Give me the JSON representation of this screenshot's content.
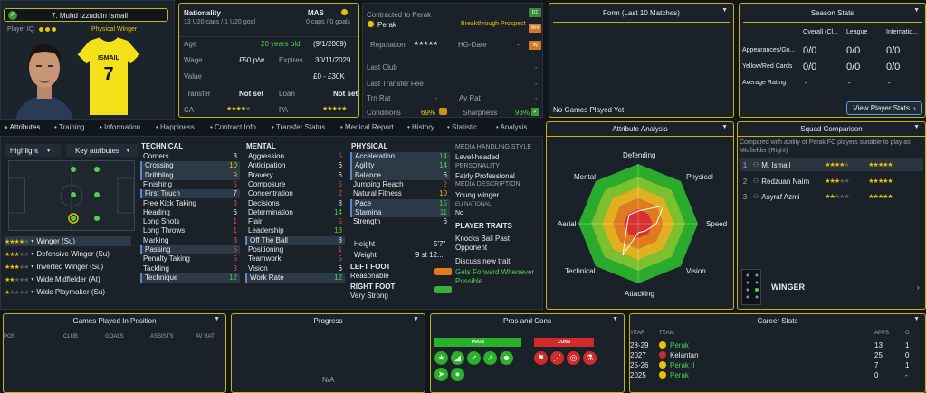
{
  "player": {
    "name": "7. Muhd Izzuddin Ismail",
    "iq_label": "Player IQ:",
    "role": "Physical Winger",
    "shirt_name": "ISMAIL",
    "shirt_number": "7",
    "badge": "A"
  },
  "bio": {
    "nationality_label": "Nationality",
    "nationality": "MAS",
    "caps": "13 U20 caps / 1 U20 goal",
    "intl_caps": "0 caps / 0 goals",
    "age_label": "Age",
    "age": "20 years old",
    "dob": "(9/1/2009)",
    "wage_label": "Wage",
    "wage": "£50 p/w",
    "expires_label": "Expires",
    "expires": "30/11/2029",
    "value_label": "Value",
    "value": "£0 - £30K",
    "transfer_label": "Transfer",
    "transfer": "Not set",
    "loan_label": "Loan",
    "loan": "Not set",
    "ca_label": "CA",
    "pa_label": "PA"
  },
  "contract": {
    "title": "Contracted to Perak",
    "club": "Perak",
    "prospect": "Breakthrough Prospect",
    "rep_label": "Reputation",
    "hg_label": "HG-Date",
    "hg_value": "-",
    "last_club_label": "Last Club",
    "last_club": "-",
    "last_fee_label": "Last Transfer Fee",
    "last_fee": "-",
    "trn_label": "Trn Rat",
    "trn": "-",
    "av_label": "Av Rat",
    "av": "-",
    "cond_label": "Conditions",
    "cond": "69%",
    "sharp_label": "Sharpness",
    "sharp": "93%",
    "tag1": "D1",
    "tag2": "Wnt",
    "tag3": "Inj"
  },
  "form": {
    "title": "Form (Last 10 Matches)",
    "empty": "No Games Played Yet"
  },
  "season": {
    "title": "Season Stats",
    "col1": "Overall (Cl...",
    "col2": "League",
    "col3": "Internatio...",
    "rows": [
      {
        "label": "Appearances/Go...",
        "a": "0/0",
        "b": "0/0",
        "c": "0/0"
      },
      {
        "label": "Yellow/Red Cards",
        "a": "0/0",
        "b": "0/0",
        "c": "0/0"
      },
      {
        "label": "Average Rating",
        "a": "-",
        "b": "-",
        "c": "-"
      }
    ],
    "button": "View Player Stats"
  },
  "tabs": [
    "Attributes",
    "Training",
    "Information",
    "Happiness",
    "Contract Info",
    "Transfer Status",
    "Medical Report",
    "History",
    "Statistic",
    "Analysis"
  ],
  "controls": {
    "highlight": "Highlight",
    "key_attrs": "Key attributes"
  },
  "technical": {
    "title": "TECHNICAL",
    "items": [
      [
        "Corners",
        "3",
        "w"
      ],
      [
        "Crossing",
        "10",
        "y"
      ],
      [
        "Dribbling",
        "9",
        "y"
      ],
      [
        "Finishing",
        "5",
        "r"
      ],
      [
        "First Touch",
        "7",
        "w"
      ],
      [
        "Free Kick Taking",
        "3",
        "r"
      ],
      [
        "Heading",
        "6",
        "w"
      ],
      [
        "Long Shots",
        "1",
        "r"
      ],
      [
        "Long Throws",
        "1",
        "r"
      ],
      [
        "Marking",
        "3",
        "r"
      ],
      [
        "Passing",
        "5",
        "r"
      ],
      [
        "Penalty Taking",
        "5",
        "r"
      ],
      [
        "Tackling",
        "3",
        "r"
      ],
      [
        "Technique",
        "12",
        "g"
      ]
    ]
  },
  "mental": {
    "title": "MENTAL",
    "items": [
      [
        "Aggression",
        "5",
        "r"
      ],
      [
        "Anticipation",
        "6",
        "w"
      ],
      [
        "Bravery",
        "6",
        "w"
      ],
      [
        "Composure",
        "5",
        "r"
      ],
      [
        "Concentration",
        "2",
        "r"
      ],
      [
        "Decisions",
        "8",
        "w"
      ],
      [
        "Determination",
        "14",
        "g"
      ],
      [
        "Flair",
        "5",
        "r"
      ],
      [
        "Leadership",
        "13",
        "g"
      ],
      [
        "Off The Ball",
        "8",
        "w"
      ],
      [
        "Positioning",
        "1",
        "r"
      ],
      [
        "Teamwork",
        "5",
        "r"
      ],
      [
        "Vision",
        "6",
        "w"
      ],
      [
        "Work Rate",
        "12",
        "g"
      ]
    ]
  },
  "physical": {
    "title": "PHYSICAL",
    "items": [
      [
        "Acceleration",
        "14",
        "g"
      ],
      [
        "Agility",
        "14",
        "g"
      ],
      [
        "Balance",
        "6",
        "w"
      ],
      [
        "Jumping Reach",
        "2",
        "r"
      ],
      [
        "Natural Fitness",
        "10",
        "y"
      ],
      [
        "Pace",
        "15",
        "g"
      ],
      [
        "Stamina",
        "11",
        "g"
      ],
      [
        "Strength",
        "6",
        "w"
      ]
    ],
    "height_label": "Height",
    "height": "5'7\"",
    "weight_label": "Weight",
    "weight": "9 st 12...",
    "left_foot_label": "LEFT FOOT",
    "left_foot": "Reasonable",
    "right_foot_label": "RIGHT FOOT",
    "right_foot": "Very Strong"
  },
  "media": {
    "style_label": "MEDIA HANDLING STYLE",
    "style": "Level-headed",
    "pers_label": "PERSONALITY",
    "pers": "Fairly Professional",
    "desc_label": "MEDIA DESCRIPTION",
    "desc": "Young winger",
    "eu_label": "EU NATIONAL",
    "eu": "No",
    "traits_label": "PLAYER TRAITS",
    "trait1": "Knocks Ball Past Opponent",
    "discuss": "Discuss new trait",
    "trait2": "Gets Forward Whenever Possible"
  },
  "roles": [
    {
      "name": "Winger (Su)",
      "stars": 4
    },
    {
      "name": "Defensive Winger (Su)",
      "stars": 3
    },
    {
      "name": "Inverted Winger (Su)",
      "stars": 3
    },
    {
      "name": "Wide Midfielder (At)",
      "stars": 2
    },
    {
      "name": "Wide Playmaker (Su)",
      "stars": 1
    }
  ],
  "analysis": {
    "title": "Attribute Analysis",
    "labels": [
      "Defending",
      "Physical",
      "Speed",
      "Vision",
      "Attacking",
      "Technical",
      "Aerial",
      "Mental"
    ]
  },
  "squad": {
    "title": "Squad Comparison",
    "desc": "Compared with ability of Perak FC players suitable to play as Midfielder (Right)",
    "rows": [
      {
        "rank": "1",
        "name": "M. Ismail",
        "ca": 4,
        "pa": 5
      },
      {
        "rank": "2",
        "name": "Redzuan Naim",
        "ca": 3,
        "pa": 5
      },
      {
        "rank": "3",
        "name": "Asyraf Azmi",
        "ca": 2,
        "pa": 5
      }
    ],
    "position": "WINGER"
  },
  "games": {
    "title": "Games Played In Position",
    "cols": [
      "POS",
      "CLUB",
      "GOALS",
      "ASSISTS",
      "AV RAT"
    ]
  },
  "progress": {
    "title": "Progress",
    "empty": "N/A"
  },
  "proscons": {
    "title": "Pros and Cons",
    "pros": "PROS",
    "cons": "CONS"
  },
  "career": {
    "title": "Career Stats",
    "cols": [
      "YEAR",
      "TEAM",
      "APPS",
      "G"
    ],
    "rows": [
      {
        "year": "28-29",
        "team": "Perak",
        "apps": "13",
        "g": "1"
      },
      {
        "year": "2027",
        "team": "Kelantan",
        "apps": "25",
        "g": "0"
      },
      {
        "year": "25-26",
        "team": "Perak II",
        "apps": "7",
        "g": "1"
      },
      {
        "year": "2025",
        "team": "Perak",
        "apps": "0",
        "g": "-"
      }
    ]
  }
}
